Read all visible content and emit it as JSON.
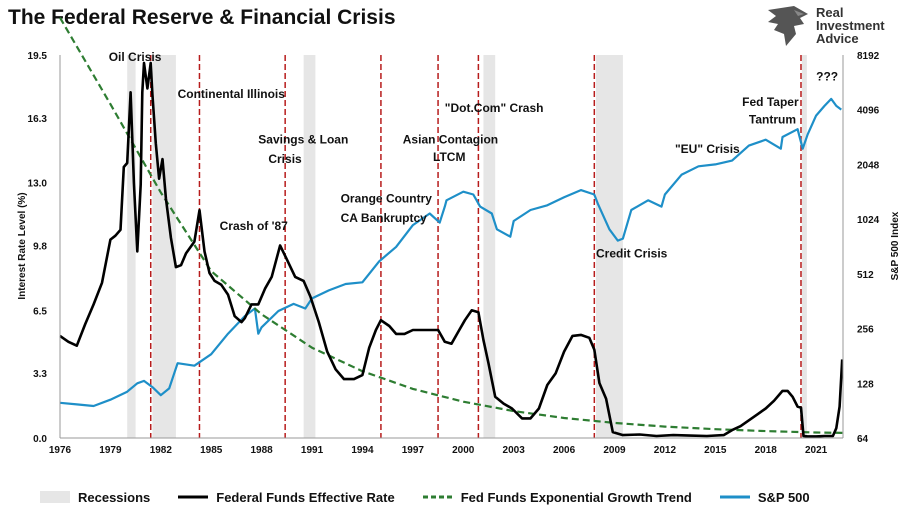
{
  "title": "The Federal Reserve & Financial Crisis",
  "logo": {
    "line1": "Real",
    "line2": "Investment",
    "line3": "Advice"
  },
  "chart_data": {
    "type": "line",
    "title": "The Federal Reserve & Financial Crisis",
    "ylabel_left": "Interest Rate Level (%)",
    "ylabel_right": "S&P 500 Index",
    "xlim": [
      1976,
      2022.6
    ],
    "ylim_left": [
      0,
      19.5
    ],
    "ylim_right_log2": [
      64,
      8192
    ],
    "x_ticks": [
      "1976",
      "1979",
      "1982",
      "1985",
      "1988",
      "1991",
      "1994",
      "1997",
      "2000",
      "2003",
      "2006",
      "2009",
      "2012",
      "2015",
      "2018",
      "2021"
    ],
    "y_ticks_left": [
      "0.0",
      "3.3",
      "6.5",
      "9.8",
      "13.0",
      "16.3",
      "19.5"
    ],
    "y_ticks_right": [
      "64",
      "128",
      "256",
      "512",
      "1024",
      "2048",
      "4096",
      "8192"
    ],
    "legend_position": "bottom",
    "colors": {
      "fed_funds": "#000000",
      "trend": "#2e7d32",
      "sp500": "#1e8fc8",
      "recession": "#e6e6e6",
      "crisis_line": "#b71c1c"
    },
    "recessions": [
      [
        1980.0,
        1980.5
      ],
      [
        1981.5,
        1982.9
      ],
      [
        1990.5,
        1991.2
      ],
      [
        2001.2,
        2001.9
      ],
      [
        2007.9,
        2009.5
      ],
      [
        2020.15,
        2020.45
      ]
    ],
    "crisis_lines": [
      1981.4,
      1984.3,
      1989.4,
      1995.1,
      1998.5,
      2000.9,
      2007.8,
      2020.1
    ],
    "annotations": [
      {
        "text": "Oil Crisis",
        "x": 1978.9,
        "y": 19.2
      },
      {
        "text": "Continental Illinois",
        "x": 1983.0,
        "y": 17.3
      },
      {
        "text": "Savings & Loan",
        "x": 1987.8,
        "y": 15.0
      },
      {
        "text": "Crisis",
        "x": 1988.4,
        "y": 14.0
      },
      {
        "text": "Asian Contagion",
        "x": 1996.4,
        "y": 15.0
      },
      {
        "text": "LTCM",
        "x": 1998.2,
        "y": 14.1
      },
      {
        "text": "\"Dot.Com\" Crash",
        "x": 1998.9,
        "y": 16.6
      },
      {
        "text": "Orange Country",
        "x": 1992.7,
        "y": 12.0
      },
      {
        "text": "CA Bankruptcy",
        "x": 1992.7,
        "y": 11.0
      },
      {
        "text": "Crash of '87",
        "x": 1985.5,
        "y": 10.6
      },
      {
        "text": "Credit Crisis",
        "x": 2007.9,
        "y": 9.2
      },
      {
        "text": "\"EU\" Crisis",
        "x": 2012.6,
        "y": 14.5
      },
      {
        "text": "Fed Taper",
        "x": 2016.6,
        "y": 16.9
      },
      {
        "text": "Tantrum",
        "x": 2017.0,
        "y": 16.0
      },
      {
        "text": "???",
        "x": 2021.0,
        "y": 18.2
      }
    ],
    "series": [
      {
        "name": "Federal Funds Effective Rate",
        "axis": "left",
        "x": [
          1976,
          1976.5,
          1977,
          1977.5,
          1978,
          1978.5,
          1979,
          1979.3,
          1979.6,
          1979.8,
          1980.0,
          1980.2,
          1980.4,
          1980.6,
          1980.8,
          1980.9,
          1981.0,
          1981.2,
          1981.4,
          1981.5,
          1981.7,
          1981.9,
          1982.1,
          1982.3,
          1982.6,
          1982.9,
          1983.2,
          1983.5,
          1984.0,
          1984.3,
          1984.6,
          1984.9,
          1985.2,
          1985.6,
          1986.0,
          1986.4,
          1986.8,
          1987.0,
          1987.4,
          1987.8,
          1988.2,
          1988.6,
          1989.1,
          1989.5,
          1990.0,
          1990.5,
          1990.9,
          1991.4,
          1991.9,
          1992.4,
          1992.9,
          1993.5,
          1994.0,
          1994.4,
          1994.8,
          1995.1,
          1995.6,
          1996.0,
          1996.5,
          1997.0,
          1997.5,
          1998.0,
          1998.5,
          1998.9,
          1999.3,
          1999.7,
          2000.1,
          2000.5,
          2000.9,
          2001.2,
          2001.5,
          2001.9,
          2002.4,
          2002.9,
          2003.5,
          2004.0,
          2004.5,
          2005.0,
          2005.5,
          2006.0,
          2006.5,
          2007.0,
          2007.5,
          2007.8,
          2008.1,
          2008.5,
          2008.9,
          2009.5,
          2010.5,
          2011.5,
          2012.5,
          2013.5,
          2014.5,
          2015.5,
          2016.0,
          2016.5,
          2017.0,
          2017.5,
          2018.0,
          2018.5,
          2019.0,
          2019.3,
          2019.6,
          2019.9,
          2020.1,
          2020.25,
          2020.5,
          2021.0,
          2021.5,
          2022.0,
          2022.2,
          2022.4,
          2022.55
        ],
        "values": [
          5.2,
          4.9,
          4.7,
          5.8,
          6.8,
          7.9,
          10.1,
          10.3,
          10.6,
          13.8,
          14.0,
          17.6,
          13.0,
          9.5,
          12.9,
          17.6,
          19.1,
          17.8,
          19.1,
          17.5,
          15.0,
          13.2,
          14.2,
          12.2,
          10.2,
          8.7,
          8.8,
          9.4,
          10.0,
          11.6,
          9.5,
          8.4,
          8.0,
          7.8,
          7.3,
          6.2,
          5.9,
          6.1,
          6.8,
          6.8,
          7.6,
          8.2,
          9.8,
          9.1,
          8.2,
          8.0,
          7.2,
          5.9,
          4.4,
          3.5,
          3.0,
          3.0,
          3.2,
          4.6,
          5.5,
          6.0,
          5.7,
          5.3,
          5.3,
          5.5,
          5.5,
          5.5,
          5.5,
          4.9,
          4.8,
          5.4,
          6.0,
          6.5,
          6.4,
          5.0,
          3.8,
          2.1,
          1.75,
          1.5,
          1.0,
          1.0,
          1.5,
          2.7,
          3.3,
          4.4,
          5.2,
          5.25,
          5.1,
          4.5,
          2.8,
          2.0,
          0.3,
          0.15,
          0.18,
          0.1,
          0.15,
          0.12,
          0.1,
          0.15,
          0.4,
          0.6,
          0.9,
          1.2,
          1.5,
          1.9,
          2.4,
          2.4,
          2.1,
          1.6,
          1.55,
          0.1,
          0.08,
          0.08,
          0.1,
          0.1,
          0.5,
          1.6,
          4.0
        ]
      },
      {
        "name": "Fed Funds Exponential Growth Trend",
        "axis": "left",
        "x": [
          1976,
          1979,
          1982,
          1985,
          1988,
          1991,
          1994,
          1997,
          2000,
          2003,
          2006,
          2009,
          2012,
          2015,
          2018,
          2021,
          2022.6
        ],
        "values": [
          21.4,
          17.0,
          12.5,
          8.5,
          6.3,
          4.6,
          3.4,
          2.5,
          1.85,
          1.37,
          1.02,
          0.77,
          0.58,
          0.45,
          0.35,
          0.28,
          0.26
        ]
      },
      {
        "name": "S&P 500",
        "axis": "right",
        "x": [
          1976,
          1977,
          1978,
          1979,
          1980,
          1980.6,
          1981,
          1981.5,
          1982.0,
          1982.5,
          1983,
          1984,
          1985,
          1986,
          1987,
          1987.6,
          1987.8,
          1988,
          1989,
          1989.9,
          1990.6,
          1991,
          1992,
          1993,
          1994,
          1995,
          1996,
          1997,
          1998,
          1998.6,
          1998.9,
          1999,
          2000,
          2000.6,
          2001,
          2001.7,
          2002,
          2002.8,
          2003,
          2004,
          2005,
          2006,
          2007,
          2007.8,
          2008,
          2008.7,
          2009.2,
          2009.5,
          2010,
          2011,
          2011.8,
          2012,
          2013,
          2014,
          2015,
          2016,
          2017,
          2018,
          2018.9,
          2019,
          2019.9,
          2020.2,
          2020.5,
          2021,
          2021.5,
          2021.9,
          2022.2,
          2022.5
        ],
        "values": [
          100,
          98,
          96,
          104,
          115,
          128,
          132,
          122,
          110,
          120,
          165,
          160,
          185,
          240,
          300,
          330,
          240,
          260,
          320,
          350,
          330,
          375,
          415,
          450,
          460,
          600,
          720,
          950,
          1100,
          980,
          1200,
          1300,
          1450,
          1400,
          1200,
          1100,
          900,
          820,
          1000,
          1150,
          1220,
          1350,
          1480,
          1400,
          1250,
          900,
          780,
          800,
          1150,
          1300,
          1200,
          1400,
          1800,
          2000,
          2050,
          2150,
          2600,
          2800,
          2500,
          2900,
          3200,
          2500,
          3000,
          3800,
          4300,
          4700,
          4300,
          4100
        ]
      }
    ]
  },
  "legend": [
    {
      "label": "Recessions",
      "kind": "box",
      "color": "#e6e6e6"
    },
    {
      "label": "Federal Funds Effective Rate",
      "kind": "line",
      "color": "#000000"
    },
    {
      "label": "Fed Funds Exponential Growth Trend",
      "kind": "dash",
      "color": "#2e7d32"
    },
    {
      "label": "S&P 500",
      "kind": "line",
      "color": "#1e8fc8"
    }
  ]
}
